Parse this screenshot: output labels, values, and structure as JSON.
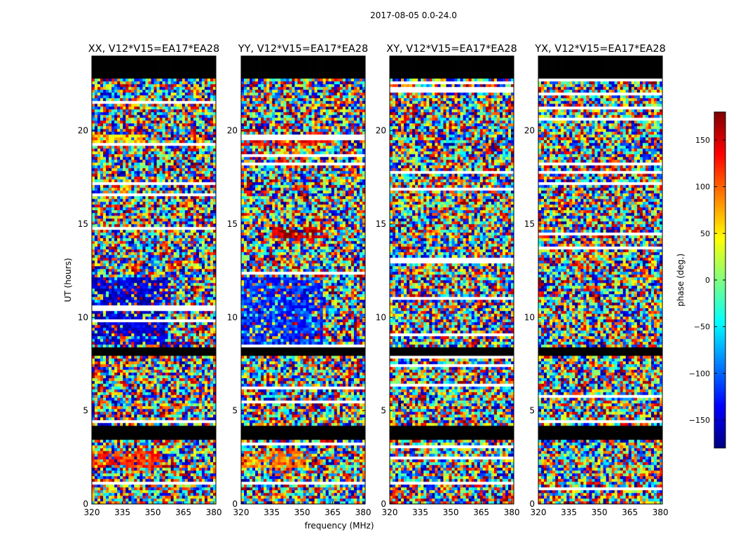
{
  "figure_title": "2017-08-05 0.0-24.0",
  "colorbar": {
    "label": "phase (deg.)",
    "min": -180,
    "max": 180,
    "ticks": [
      -150,
      -100,
      -50,
      0,
      50,
      100,
      150
    ],
    "tick_labels": [
      "−150",
      "−100",
      "−50",
      "0",
      "50",
      "100",
      "150"
    ],
    "colormap": "jet",
    "colors": [
      "#00007f",
      "#0000ff",
      "#007fff",
      "#00ffff",
      "#7fff7f",
      "#ffff00",
      "#ff7f00",
      "#ff0000",
      "#7f0000"
    ]
  },
  "chart_data": [
    {
      "type": "heatmap",
      "title": "XX, V12*V15=EA17*EA28",
      "xlabel": "",
      "ylabel": "UT (hours)",
      "xlim": [
        320,
        381
      ],
      "ylim": [
        0,
        24
      ],
      "xticks": [
        320,
        335,
        350,
        365,
        380
      ],
      "yticks": [
        0,
        5,
        10,
        15,
        20
      ],
      "values": "phase (deg.), -180 to 180, noisy fringe pattern",
      "flagged_ut_hours": [
        [
          0.0,
          0.0
        ],
        [
          3.4,
          4.2
        ],
        [
          8.0,
          8.4
        ],
        [
          22.8,
          24.0
        ]
      ],
      "coherent_regions": [
        {
          "ut": [
            8.6,
            12.2
          ],
          "freq": [
            320,
            358
          ],
          "phase_deg": -150
        },
        {
          "ut": [
            2.0,
            2.9
          ],
          "freq": [
            320,
            355
          ],
          "phase_deg": 120
        },
        {
          "ut": [
            19.2,
            19.8
          ],
          "freq": [
            320,
            345
          ],
          "phase_deg": 60
        }
      ]
    },
    {
      "type": "heatmap",
      "title": "YY, V12*V15=EA17*EA28",
      "xlabel": "frequency (MHz)",
      "ylabel": "",
      "xlim": [
        320,
        381
      ],
      "ylim": [
        0,
        24
      ],
      "xticks": [
        320,
        335,
        350,
        365,
        380
      ],
      "yticks": [
        0,
        5,
        10,
        15,
        20
      ],
      "values": "phase (deg.), -180 to 180, noisy fringe pattern",
      "flagged_ut_hours": [
        [
          3.4,
          4.2
        ],
        [
          8.0,
          8.4
        ],
        [
          22.8,
          24.0
        ]
      ],
      "coherent_regions": [
        {
          "ut": [
            8.6,
            12.2
          ],
          "freq": [
            320,
            360
          ],
          "phase_deg": -120
        },
        {
          "ut": [
            2.0,
            2.9
          ],
          "freq": [
            320,
            352
          ],
          "phase_deg": 90
        },
        {
          "ut": [
            19.2,
            19.8
          ],
          "freq": [
            320,
            365
          ],
          "phase_deg": 130
        },
        {
          "ut": [
            14.2,
            14.8
          ],
          "freq": [
            335,
            360
          ],
          "phase_deg": 160
        }
      ]
    },
    {
      "type": "heatmap",
      "title": "XY, V12*V15=EA17*EA28",
      "xlabel": "",
      "ylabel": "",
      "xlim": [
        320,
        381
      ],
      "ylim": [
        0,
        24
      ],
      "xticks": [
        320,
        335,
        350,
        365,
        380
      ],
      "yticks": [
        0,
        5,
        10,
        15,
        20
      ],
      "values": "phase (deg.), -180 to 180, noise",
      "flagged_ut_hours": [
        [
          3.4,
          4.2
        ],
        [
          8.0,
          8.4
        ],
        [
          22.8,
          24.0
        ]
      ],
      "coherent_regions": []
    },
    {
      "type": "heatmap",
      "title": "YX, V12*V15=EA17*EA28",
      "xlabel": "",
      "ylabel": "",
      "xlim": [
        320,
        381
      ],
      "ylim": [
        0,
        24
      ],
      "xticks": [
        320,
        335,
        350,
        365,
        380
      ],
      "yticks": [
        0,
        5,
        10,
        15,
        20
      ],
      "values": "phase (deg.), -180 to 180, noise",
      "flagged_ut_hours": [
        [
          3.4,
          4.2
        ],
        [
          8.0,
          8.4
        ],
        [
          22.8,
          24.0
        ]
      ],
      "coherent_regions": []
    }
  ]
}
